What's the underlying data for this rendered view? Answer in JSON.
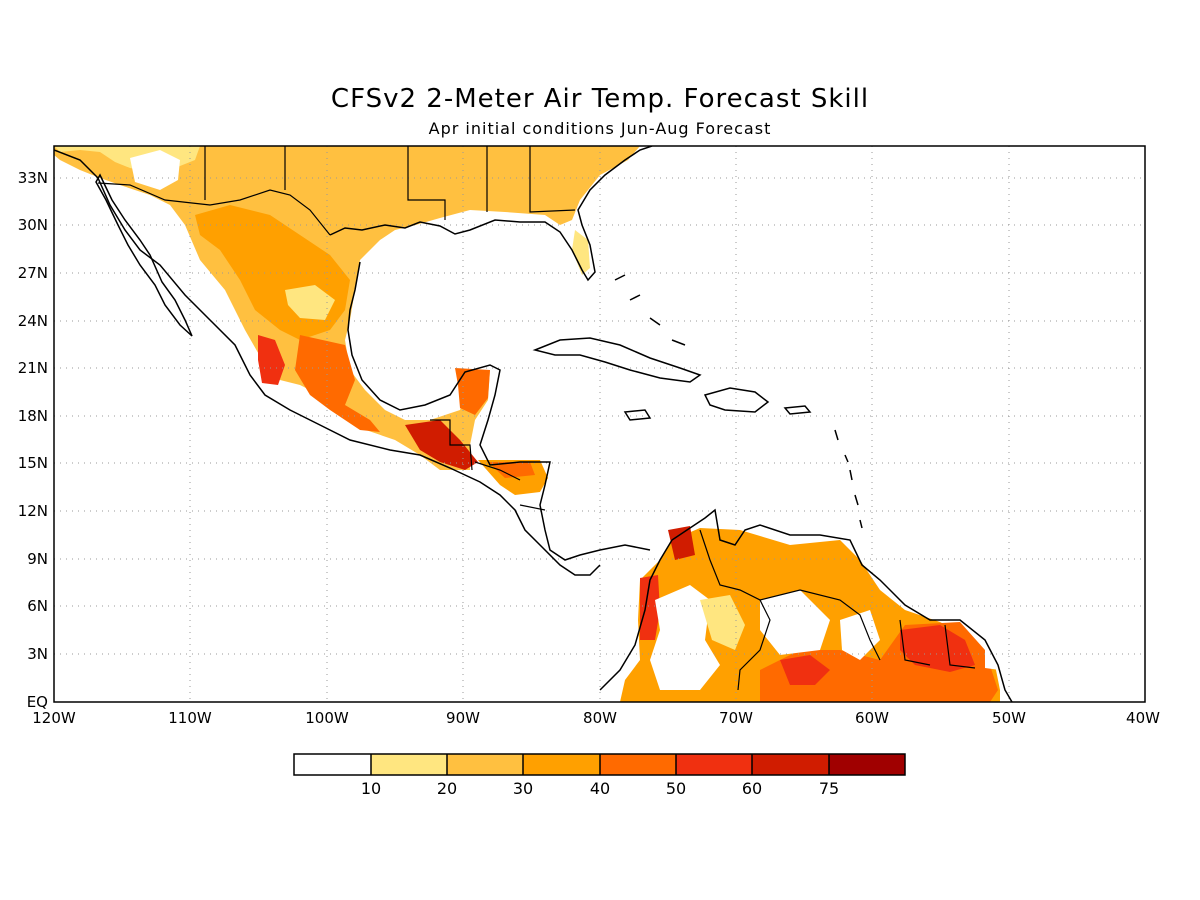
{
  "title": "CFSv2 2-Meter Air Temp. Forecast Skill",
  "subtitle": "Apr initial conditions  Jun-Aug Forecast",
  "map": {
    "region": "Central America and Caribbean",
    "lon_range": [
      -120,
      -40
    ],
    "lat_range": [
      0,
      35
    ],
    "grid": "dotted"
  },
  "axes": {
    "lat_labels": [
      "33N",
      "30N",
      "27N",
      "24N",
      "21N",
      "18N",
      "15N",
      "12N",
      "9N",
      "6N",
      "3N",
      "EQ"
    ],
    "lon_labels": [
      "120W",
      "110W",
      "100W",
      "90W",
      "80W",
      "70W",
      "60W",
      "50W",
      "40W"
    ]
  },
  "colorbar": {
    "colors": [
      "#ffffff",
      "#ffe680",
      "#ffc040",
      "#ffa000",
      "#ff6a00",
      "#f03010",
      "#d01c00",
      "#a00000"
    ],
    "labels": [
      "10",
      "20",
      "30",
      "40",
      "50",
      "60",
      "75"
    ]
  }
}
